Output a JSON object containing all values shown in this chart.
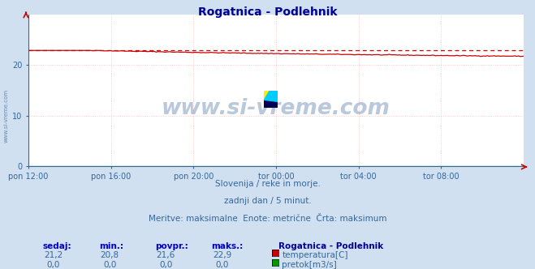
{
  "title": "Rogatnica - Podlehnik",
  "bg_color": "#d0e0f0",
  "plot_bg_color": "#ffffff",
  "x_labels": [
    "pon 12:00",
    "pon 16:00",
    "pon 20:00",
    "tor 00:00",
    "tor 04:00",
    "tor 08:00"
  ],
  "x_ticks_norm": [
    0.0,
    0.1667,
    0.3333,
    0.5,
    0.6667,
    0.8333
  ],
  "ylim": [
    0,
    30
  ],
  "yticks": [
    0,
    10,
    20
  ],
  "grid_color": "#ffbbbb",
  "temp_line_color": "#cc0000",
  "flow_line_color": "#009900",
  "temp_max_value": 22.9,
  "temp_min_value": 20.8,
  "temp_avg_value": 21.6,
  "temp_current_value": 21.2,
  "flow_current_value": 0.0,
  "flow_min_value": 0.0,
  "flow_avg_value": 0.0,
  "flow_max_value": 0.0,
  "subtitle1": "Slovenija / reke in morje.",
  "subtitle2": "zadnji dan / 5 minut.",
  "subtitle3": "Meritve: maksimalne  Enote: metrične  Črta: maksimum",
  "label_sedaj": "sedaj:",
  "label_min": "min.:",
  "label_povpr": "povpr.:",
  "label_maks": "maks.:",
  "station_label": "Rogatnica - Podlehnik",
  "legend_temp": "temperatura[C]",
  "legend_flow": "pretok[m3/s]",
  "watermark": "www.si-vreme.com",
  "watermark_color": "#1a4a8a",
  "left_label": "www.si-vreme.com",
  "axis_label_color": "#336699",
  "subtitle_color": "#336699",
  "table_header_color": "#0000cc",
  "table_value_color": "#336699",
  "title_color": "#000099"
}
